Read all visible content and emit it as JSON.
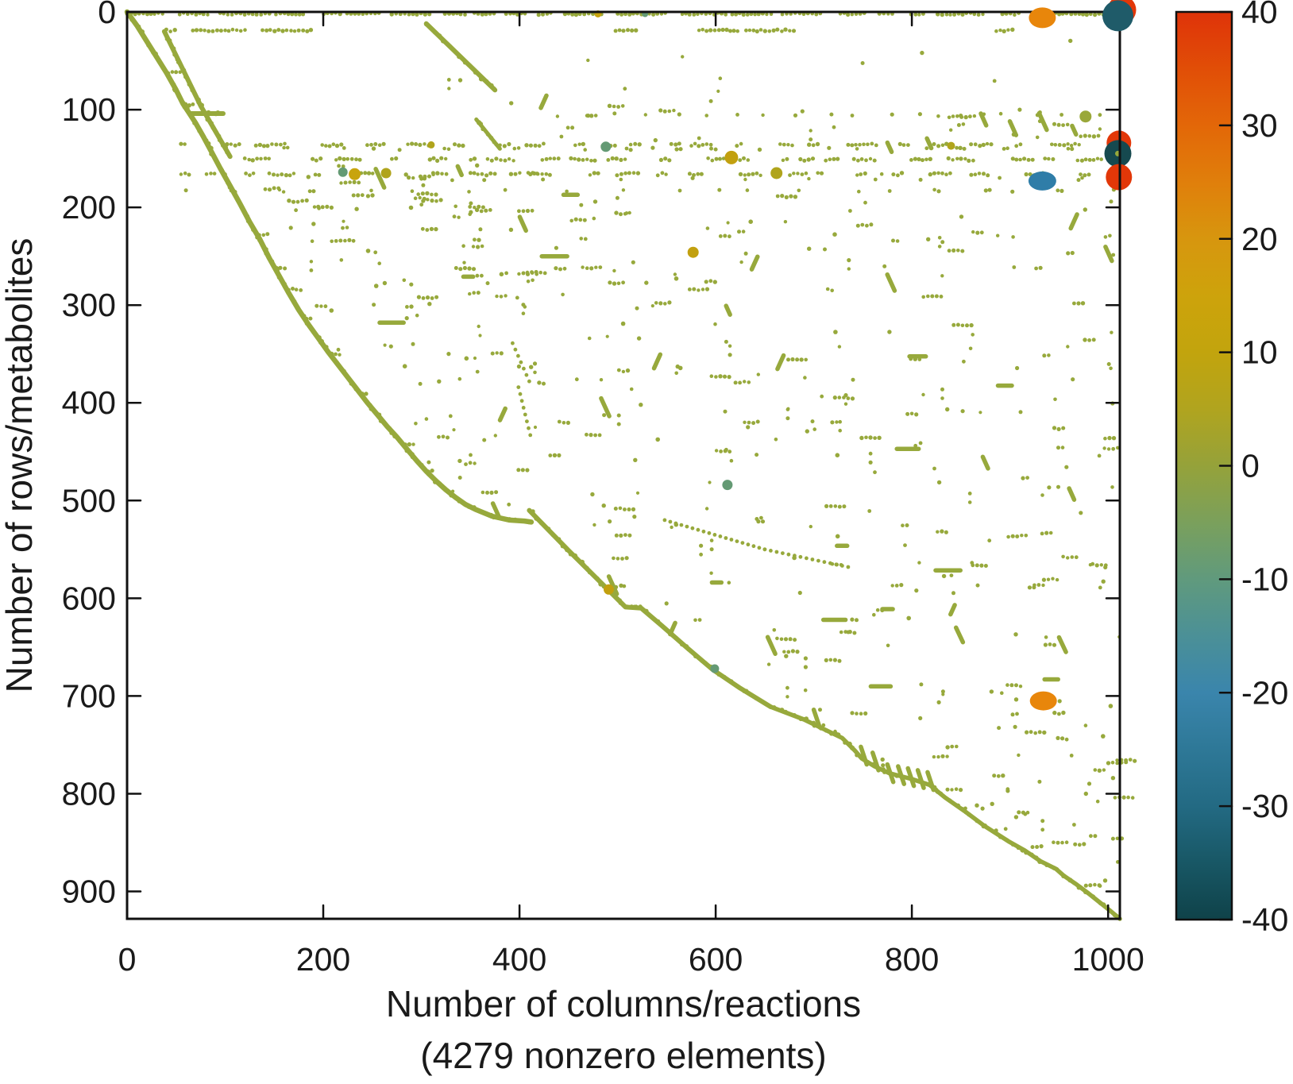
{
  "figure": {
    "xlabel_line1": "Number of columns/reactions",
    "xlabel_line2": "(4279 nonzero elements)",
    "ylabel": "Number of rows/metabolites"
  },
  "chart_data": {
    "type": "scatter",
    "subtype": "spy-sparsity-pattern-of-stoichiometric-matrix",
    "xlabel": "Number of columns/reactions",
    "xlabel_note": "(4279 nonzero elements)",
    "ylabel": "Number of rows/metabolites",
    "nonzero_elements": 4279,
    "x_range": [
      0,
      1012
    ],
    "y_range": [
      0,
      928
    ],
    "y_inverted": true,
    "grid": false,
    "x_ticks": [
      0,
      200,
      400,
      600,
      800,
      1000
    ],
    "y_ticks": [
      0,
      100,
      200,
      300,
      400,
      500,
      600,
      700,
      800,
      900
    ],
    "base_color": "#97a93c",
    "colorbar": {
      "min": -40,
      "max": 40,
      "ticks": [
        40,
        30,
        20,
        10,
        0,
        -10,
        -20,
        -30,
        -40
      ],
      "stops": [
        {
          "v": 40,
          "c": "#df3309"
        },
        {
          "v": 35,
          "c": "#e14e07"
        },
        {
          "v": 30,
          "c": "#e36708"
        },
        {
          "v": 25,
          "c": "#e07f0b"
        },
        {
          "v": 20,
          "c": "#d7960e"
        },
        {
          "v": 15,
          "c": "#cda30c"
        },
        {
          "v": 10,
          "c": "#c2a40d"
        },
        {
          "v": 5,
          "c": "#b0a41f"
        },
        {
          "v": 0,
          "c": "#95a23a"
        },
        {
          "v": -5,
          "c": "#7aa05c"
        },
        {
          "v": -10,
          "c": "#609a7d"
        },
        {
          "v": -15,
          "c": "#4b9097"
        },
        {
          "v": -20,
          "c": "#3a85ac"
        },
        {
          "v": -25,
          "c": "#2e7897"
        },
        {
          "v": -30,
          "c": "#236a83"
        },
        {
          "v": -35,
          "c": "#185765"
        },
        {
          "v": -40,
          "c": "#0f4249"
        }
      ]
    },
    "notable_markers": [
      {
        "col": 933,
        "row": 6,
        "value": 25,
        "color": "#e8860b",
        "shape": "ellipse",
        "w": 34,
        "h": 26,
        "layer": "top"
      },
      {
        "col": 1014,
        "row": -2,
        "value": 40,
        "color": "#e23708",
        "shape": "circle",
        "w": 36,
        "h": 36,
        "layer": "top"
      },
      {
        "col": 1010,
        "row": 4,
        "value": -30,
        "color": "#1f5b69",
        "shape": "circle",
        "w": 39,
        "h": 39,
        "layer": "top"
      },
      {
        "col": 1011,
        "row": 134,
        "value": 40,
        "color": "#e23708",
        "shape": "circle",
        "w": 31,
        "h": 31,
        "layer": "mid"
      },
      {
        "col": 1010,
        "row": 145,
        "value": -38,
        "color": "#16494f",
        "shape": "circle",
        "w": 34,
        "h": 34,
        "layer": "mid",
        "center_dot": true
      },
      {
        "col": 1011,
        "row": 169,
        "value": 40,
        "color": "#e23708",
        "shape": "circle",
        "w": 33,
        "h": 33,
        "layer": "mid"
      },
      {
        "col": 933,
        "row": 173,
        "value": -20,
        "color": "#2f7da8",
        "shape": "ellipse",
        "w": 35,
        "h": 24,
        "layer": "mid"
      },
      {
        "col": 934,
        "row": 705,
        "value": 25,
        "color": "#e8860b",
        "shape": "ellipse",
        "w": 34,
        "h": 24,
        "layer": "top"
      }
    ],
    "medium_dots": [
      {
        "col": 220,
        "row": 164,
        "d": 12,
        "value": -8,
        "color": "#649a74"
      },
      {
        "col": 232,
        "row": 166,
        "d": 15,
        "value": 12,
        "color": "#c8a40e"
      },
      {
        "col": 264,
        "row": 165,
        "d": 13,
        "value": 8,
        "color": "#b0a41c"
      },
      {
        "col": 488,
        "row": 138,
        "d": 13,
        "value": -8,
        "color": "#649a74"
      },
      {
        "col": 616,
        "row": 149,
        "d": 17,
        "value": 15,
        "color": "#c2a00f"
      },
      {
        "col": 662,
        "row": 165,
        "d": 15,
        "value": 8,
        "color": "#b0a41c"
      },
      {
        "col": 577,
        "row": 246,
        "d": 14,
        "value": 15,
        "color": "#c2a00f"
      },
      {
        "col": 612,
        "row": 484,
        "d": 13,
        "value": -8,
        "color": "#649a74"
      },
      {
        "col": 977,
        "row": 107,
        "d": 15,
        "value": 2,
        "color": "#9aa83a"
      },
      {
        "col": 491,
        "row": 591,
        "d": 13,
        "value": 15,
        "color": "#c2a00f"
      },
      {
        "col": 599,
        "row": 672,
        "d": 11,
        "value": -8,
        "color": "#649a74"
      },
      {
        "col": 480,
        "row": 2,
        "d": 9,
        "value": 12,
        "color": "#c8a40e"
      },
      {
        "col": 528,
        "row": 2,
        "d": 8,
        "value": -8,
        "color": "#649a74"
      },
      {
        "col": 840,
        "row": 137,
        "d": 10,
        "value": 8,
        "color": "#b0a41c"
      },
      {
        "col": 310,
        "row": 136,
        "d": 9,
        "value": 8,
        "color": "#b0a41c"
      }
    ],
    "pattern": {
      "seed": 42,
      "curves": [
        {
          "name": "main-A",
          "boundary": true,
          "w": 6.5,
          "pts": [
            [
              0,
              0
            ],
            [
              10,
              14
            ],
            [
              20,
              30
            ],
            [
              30,
              46
            ],
            [
              40,
              62
            ],
            [
              50,
              80
            ],
            [
              57,
              94
            ],
            [
              63,
              103
            ],
            [
              70,
              114
            ],
            [
              78,
              128
            ],
            [
              86,
              143
            ],
            [
              95,
              160
            ],
            [
              105,
              178
            ],
            [
              115,
              196
            ],
            [
              125,
              215
            ],
            [
              135,
              232
            ],
            [
              145,
              252
            ],
            [
              155,
              270
            ],
            [
              165,
              288
            ],
            [
              175,
              305
            ],
            [
              185,
              320
            ],
            [
              195,
              334
            ],
            [
              205,
              348
            ],
            [
              215,
              361
            ],
            [
              225,
              374
            ],
            [
              235,
              387
            ],
            [
              245,
              400
            ],
            [
              255,
              412
            ],
            [
              265,
              424
            ],
            [
              275,
              435
            ],
            [
              285,
              447
            ],
            [
              295,
              459
            ],
            [
              305,
              470
            ],
            [
              315,
              480
            ],
            [
              325,
              489
            ],
            [
              335,
              497
            ],
            [
              345,
              504
            ],
            [
              355,
              509
            ],
            [
              372,
              516
            ],
            [
              390,
              520
            ],
            [
              405,
              521
            ],
            [
              412,
              522
            ]
          ]
        },
        {
          "name": "main-B",
          "boundary": true,
          "w": 6,
          "pts": [
            [
              410,
              510
            ],
            [
              450,
              551
            ],
            [
              488,
              589
            ],
            [
              508,
              609
            ],
            [
              524,
              610
            ],
            [
              545,
              628
            ],
            [
              570,
              650
            ],
            [
              597,
              673
            ],
            [
              625,
              692
            ],
            [
              656,
              711
            ]
          ]
        },
        {
          "name": "main-D",
          "boundary": true,
          "w": 5.5,
          "pts": [
            [
              656,
              711
            ],
            [
              690,
              724
            ],
            [
              729,
              743
            ],
            [
              742,
              756
            ],
            [
              749,
              764
            ],
            [
              762,
              772
            ],
            [
              777,
              779
            ],
            [
              800,
              785
            ],
            [
              818,
              791
            ],
            [
              834,
              804
            ],
            [
              854,
              818
            ],
            [
              874,
              833
            ],
            [
              899,
              849
            ],
            [
              915,
              858
            ],
            [
              931,
              869
            ],
            [
              947,
              877
            ],
            [
              955,
              884
            ],
            [
              968,
              893
            ],
            [
              980,
              902
            ],
            [
              990,
              910
            ],
            [
              1000,
              918
            ],
            [
              1012,
              928
            ]
          ]
        },
        {
          "name": "second-diagonal",
          "w": 6,
          "pts": [
            [
              38,
              20
            ],
            [
              75,
              96
            ],
            [
              105,
              148
            ]
          ]
        },
        {
          "name": "second-flat",
          "w": 6,
          "pts": [
            [
              64,
              104
            ],
            [
              98,
              104
            ]
          ]
        },
        {
          "name": "third-diagonal",
          "w": 6,
          "pts": [
            [
              305,
              12
            ],
            [
              375,
              80
            ]
          ]
        },
        {
          "name": "third-diagonal-b",
          "w": 5,
          "pts": [
            [
              356,
              110
            ],
            [
              380,
              140
            ]
          ]
        }
      ],
      "dotted_diagonals": [
        {
          "pts": [
            [
              548,
              520
            ],
            [
              650,
              550
            ],
            [
              735,
              568
            ]
          ],
          "gap": 6
        },
        {
          "pts": [
            [
              393,
              339
            ],
            [
              410,
              378
            ]
          ],
          "gap": 7
        },
        {
          "pts": [
            [
              399,
              384
            ],
            [
              411,
              433
            ]
          ],
          "gap": 7
        }
      ],
      "hatches": [
        [
          748,
          752,
          754,
          770
        ],
        [
          760,
          758,
          766,
          776
        ],
        [
          775,
          770,
          781,
          788
        ],
        [
          786,
          772,
          792,
          790
        ],
        [
          796,
          774,
          802,
          792
        ],
        [
          806,
          776,
          812,
          794
        ],
        [
          816,
          778,
          822,
          796
        ],
        [
          700,
          714,
          706,
          732
        ],
        [
          845,
          630,
          852,
          645
        ],
        [
          950,
          640,
          957,
          655
        ]
      ],
      "rows": [
        {
          "row": 2,
          "from": 0,
          "to": 1012,
          "runmin": 8,
          "runmax": 55,
          "gapmin": 3,
          "gapmax": 20,
          "jitter": 1.2
        },
        {
          "row": 19,
          "runs": [
            [
              40,
              52
            ],
            [
              67,
              123
            ],
            [
              138,
              188
            ],
            [
              498,
              522
            ],
            [
              583,
              623
            ],
            [
              631,
              680
            ],
            [
              886,
              904
            ]
          ]
        },
        {
          "row": 105,
          "from": 470,
          "to": 1012,
          "runmin": 1,
          "runmax": 3,
          "gapmin": 15,
          "gapmax": 40,
          "jitter": 1.5
        },
        {
          "row": 107,
          "runs": [
            [
              838,
              866
            ]
          ]
        },
        {
          "row": 136,
          "from": 55,
          "to": 1012,
          "runmin": 5,
          "runmax": 34,
          "gapmin": 6,
          "gapmax": 38,
          "jitter": 1.6
        },
        {
          "row": 140,
          "from": 160,
          "to": 1012,
          "runmin": 2,
          "runmax": 8,
          "gapmin": 20,
          "gapmax": 70,
          "jitter": 1.5
        },
        {
          "row": 151,
          "from": 120,
          "to": 1012,
          "runmin": 4,
          "runmax": 30,
          "gapmin": 8,
          "gapmax": 42,
          "jitter": 1.6
        },
        {
          "row": 166,
          "from": 55,
          "to": 1012,
          "runmin": 3,
          "runmax": 26,
          "gapmin": 6,
          "gapmax": 38,
          "jitter": 1.6
        },
        {
          "row": 171,
          "from": 300,
          "to": 1012,
          "runmin": 1,
          "runmax": 4,
          "gapmin": 25,
          "gapmax": 80,
          "jitter": 1.5
        },
        {
          "row": 183,
          "from": 60,
          "to": 1012,
          "runmin": 1,
          "runmax": 5,
          "gapmin": 20,
          "gapmax": 60,
          "jitter": 1.5
        }
      ],
      "offshoots": [
        {
          "row": 62,
          "len": 14
        },
        {
          "row": 95,
          "len": 10
        },
        {
          "row": 228,
          "len": 12
        },
        {
          "row": 262,
          "len": 9
        },
        {
          "row": 284,
          "len": 16
        },
        {
          "row": 314,
          "len": 8
        },
        {
          "row": 350,
          "len": 10
        },
        {
          "row": 391,
          "len": 7
        },
        {
          "row": 443,
          "len": 9
        },
        {
          "row": 470,
          "len": 8
        },
        {
          "row": 589,
          "len": 12
        },
        {
          "row": 609,
          "len": 14
        }
      ],
      "scatter_regions": [
        {
          "cols": [
            100,
            410
          ],
          "rows": [
            155,
            350
          ],
          "n": 170,
          "runbias": 0.45
        },
        {
          "cols": [
            160,
            430
          ],
          "rows": [
            350,
            520
          ],
          "n": 40,
          "runbias": 0.2
        },
        {
          "cols": [
            430,
            1012
          ],
          "rows": [
            185,
            480
          ],
          "n": 260,
          "runbias": 0.35
        },
        {
          "cols": [
            470,
            1012
          ],
          "rows": [
            480,
            780
          ],
          "n": 210,
          "runbias": 0.3
        },
        {
          "cols": [
            700,
            1012
          ],
          "rows": [
            780,
            928
          ],
          "n": 55,
          "runbias": 0.3
        },
        {
          "cols": [
            300,
            1012
          ],
          "rows": [
            25,
            95
          ],
          "n": 14,
          "runbias": 0.1
        },
        {
          "cols": [
            430,
            1012
          ],
          "rows": [
            95,
            132
          ],
          "n": 40,
          "runbias": 0.3
        }
      ],
      "random_strokes": {
        "count": 26,
        "cols": [
          250,
          1000
        ],
        "rows": [
          60,
          820
        ],
        "lenmin": 8,
        "lenmax": 20
      },
      "random_dashes": {
        "count": 14,
        "cols": [
          250,
          1000
        ],
        "rows": [
          180,
          800
        ],
        "lenmin": 8,
        "lenmax": 26
      }
    }
  }
}
